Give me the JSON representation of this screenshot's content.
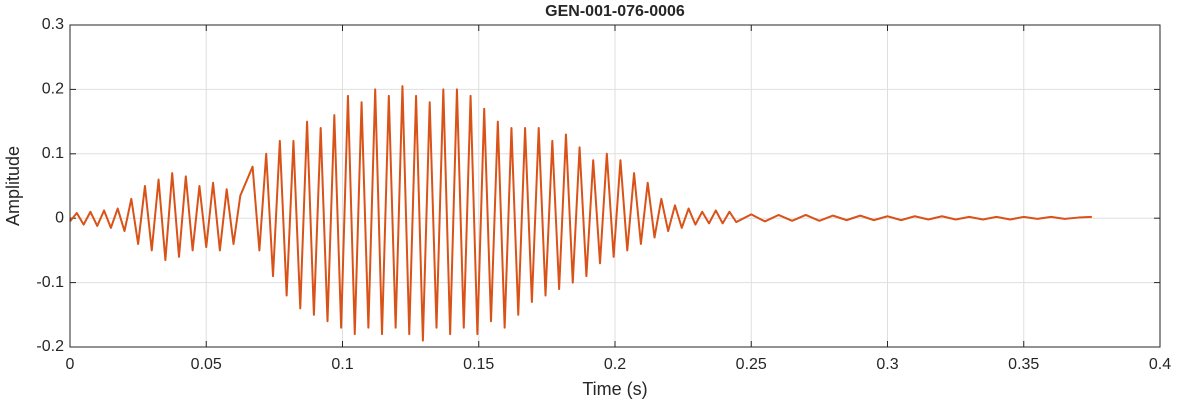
{
  "chart_data": {
    "type": "line",
    "title": "GEN-001-076-0006",
    "x_label": "Time (s)",
    "y_label": "Amplitude",
    "xlim": [
      0,
      0.4
    ],
    "xticks": [
      0,
      0.05,
      0.1,
      0.15,
      0.2,
      0.25,
      0.3,
      0.35,
      0.4
    ],
    "ylim": [
      -0.2,
      0.3
    ],
    "yticks": [
      -0.2,
      -0.1,
      0,
      0.1,
      0.2,
      0.3
    ],
    "grid": true,
    "x": [
      0,
      0.0025,
      0.005,
      0.0075,
      0.01,
      0.0125,
      0.015,
      0.0175,
      0.02,
      0.0225,
      0.025,
      0.0275,
      0.03,
      0.0325,
      0.035,
      0.0375,
      0.04,
      0.0425,
      0.045,
      0.0475,
      0.05,
      0.0525,
      0.055,
      0.0575,
      0.06,
      0.0625,
      0.067,
      0.0695,
      0.072,
      0.0745,
      0.077,
      0.0795,
      0.082,
      0.0845,
      0.087,
      0.0895,
      0.092,
      0.0945,
      0.097,
      0.0995,
      0.102,
      0.1045,
      0.107,
      0.1095,
      0.112,
      0.1145,
      0.117,
      0.1195,
      0.122,
      0.1245,
      0.127,
      0.1295,
      0.132,
      0.1345,
      0.137,
      0.1395,
      0.142,
      0.1445,
      0.147,
      0.1495,
      0.152,
      0.1545,
      0.157,
      0.1595,
      0.162,
      0.1645,
      0.167,
      0.1695,
      0.172,
      0.1745,
      0.177,
      0.1795,
      0.182,
      0.1845,
      0.187,
      0.1895,
      0.192,
      0.1945,
      0.197,
      0.1995,
      0.202,
      0.2045,
      0.207,
      0.2095,
      0.212,
      0.2145,
      0.217,
      0.2195,
      0.222,
      0.2245,
      0.227,
      0.2295,
      0.232,
      0.2345,
      0.237,
      0.2395,
      0.242,
      0.2445,
      0.25,
      0.255,
      0.26,
      0.265,
      0.27,
      0.275,
      0.28,
      0.285,
      0.29,
      0.295,
      0.3,
      0.305,
      0.31,
      0.315,
      0.32,
      0.325,
      0.33,
      0.335,
      0.34,
      0.345,
      0.35,
      0.355,
      0.36,
      0.365,
      0.37,
      0.375
    ],
    "series": [
      {
        "name": "Amplitude",
        "color": "#D95319",
        "values": [
          -0.005,
          0.008,
          -0.01,
          0.01,
          -0.012,
          0.012,
          -0.015,
          0.015,
          -0.02,
          0.03,
          -0.04,
          0.05,
          -0.05,
          0.06,
          -0.065,
          0.07,
          -0.06,
          0.065,
          -0.05,
          0.05,
          -0.045,
          0.055,
          -0.05,
          0.045,
          -0.04,
          0.035,
          0.08,
          -0.05,
          0.1,
          -0.09,
          0.12,
          -0.12,
          0.12,
          -0.14,
          0.15,
          -0.15,
          0.14,
          -0.16,
          0.16,
          -0.17,
          0.19,
          -0.18,
          0.18,
          -0.17,
          0.2,
          -0.18,
          0.19,
          -0.17,
          0.205,
          -0.18,
          0.19,
          -0.19,
          0.18,
          -0.17,
          0.2,
          -0.18,
          0.2,
          -0.17,
          0.19,
          -0.18,
          0.17,
          -0.16,
          0.15,
          -0.17,
          0.14,
          -0.15,
          0.14,
          -0.13,
          0.14,
          -0.12,
          0.12,
          -0.11,
          0.13,
          -0.1,
          0.11,
          -0.09,
          0.09,
          -0.07,
          0.1,
          -0.06,
          0.09,
          -0.05,
          0.07,
          -0.04,
          0.055,
          -0.03,
          0.03,
          -0.02,
          0.02,
          -0.015,
          0.015,
          -0.01,
          0.01,
          -0.008,
          0.012,
          -0.008,
          0.01,
          -0.006,
          0.006,
          -0.005,
          0.005,
          -0.004,
          0.005,
          -0.004,
          0.004,
          -0.003,
          0.004,
          -0.003,
          0.003,
          -0.003,
          0.003,
          -0.002,
          0.003,
          -0.002,
          0.002,
          -0.002,
          0.002,
          -0.002,
          0.002,
          -0.001,
          0.002,
          -0.001,
          0.001,
          0.002
        ]
      }
    ]
  }
}
